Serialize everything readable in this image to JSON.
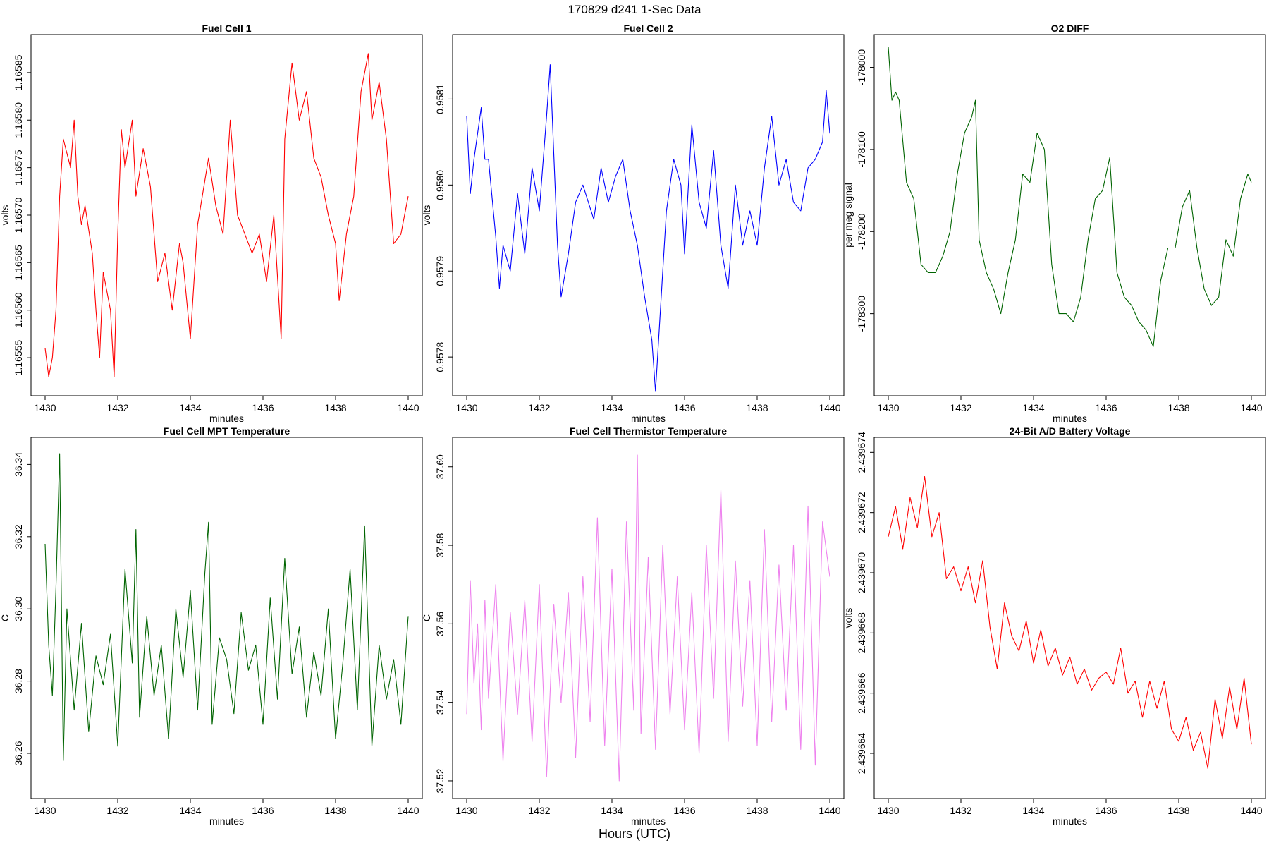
{
  "page": {
    "title": "170829   d241   1-Sec Data",
    "footer": "Hours (UTC)"
  },
  "chart_data": [
    {
      "type": "line",
      "title": "Fuel Cell 1",
      "xlabel": "minutes",
      "ylabel": "volts",
      "color": "#ff0000",
      "xlim": [
        1430,
        1440
      ],
      "ylim": [
        1.16551,
        1.16589
      ],
      "x_ticks": [
        1430,
        1432,
        1434,
        1436,
        1438,
        1440
      ],
      "y_ticks": [
        1.16555,
        1.1656,
        1.16565,
        1.1657,
        1.16575,
        1.1658,
        1.16585
      ],
      "y_tick_labels": [
        "1.16555",
        "1.16560",
        "1.16565",
        "1.16570",
        "1.16575",
        "1.16580",
        "1.16585"
      ],
      "series": [
        {
          "x": [
            1430.0,
            1430.1,
            1430.2,
            1430.3,
            1430.4,
            1430.5,
            1430.7,
            1430.8,
            1430.9,
            1431.0,
            1431.1,
            1431.3,
            1431.4,
            1431.5,
            1431.6,
            1431.8,
            1431.9,
            1432.0,
            1432.1,
            1432.2,
            1432.4,
            1432.5,
            1432.7,
            1432.9,
            1433.1,
            1433.3,
            1433.5,
            1433.7,
            1433.8,
            1434.0,
            1434.2,
            1434.5,
            1434.7,
            1434.9,
            1435.1,
            1435.3,
            1435.5,
            1435.7,
            1435.9,
            1436.1,
            1436.3,
            1436.5,
            1436.6,
            1436.8,
            1437.0,
            1437.2,
            1437.4,
            1437.6,
            1437.8,
            1438.0,
            1438.1,
            1438.3,
            1438.5,
            1438.7,
            1438.9,
            1439.0,
            1439.2,
            1439.4,
            1439.6,
            1439.8,
            1440.0
          ],
          "y": [
            1.16556,
            1.16553,
            1.16555,
            1.1656,
            1.16572,
            1.16578,
            1.16575,
            1.1658,
            1.16572,
            1.16569,
            1.16571,
            1.16566,
            1.1656,
            1.16555,
            1.16564,
            1.1656,
            1.16553,
            1.16568,
            1.16579,
            1.16575,
            1.1658,
            1.16572,
            1.16577,
            1.16573,
            1.16563,
            1.16566,
            1.1656,
            1.16567,
            1.16565,
            1.16557,
            1.16569,
            1.16576,
            1.16571,
            1.16568,
            1.1658,
            1.1657,
            1.16568,
            1.16566,
            1.16568,
            1.16563,
            1.1657,
            1.16557,
            1.16578,
            1.16586,
            1.1658,
            1.16583,
            1.16576,
            1.16574,
            1.1657,
            1.16567,
            1.16561,
            1.16568,
            1.16572,
            1.16583,
            1.16587,
            1.1658,
            1.16584,
            1.16578,
            1.16567,
            1.16568,
            1.16572
          ]
        }
      ]
    },
    {
      "type": "line",
      "title": "Fuel Cell 2",
      "xlabel": "minutes",
      "ylabel": "volts",
      "color": "#0000ff",
      "xlim": [
        1430,
        1440
      ],
      "ylim": [
        0.957755,
        0.958175
      ],
      "x_ticks": [
        1430,
        1432,
        1434,
        1436,
        1438,
        1440
      ],
      "y_ticks": [
        0.9578,
        0.9579,
        0.958,
        0.9581
      ],
      "y_tick_labels": [
        "0.9578",
        "0.9579",
        "0.9580",
        "0.9581"
      ],
      "series": [
        {
          "x": [
            1430.0,
            1430.1,
            1430.2,
            1430.4,
            1430.5,
            1430.6,
            1430.8,
            1430.9,
            1431.0,
            1431.2,
            1431.4,
            1431.6,
            1431.8,
            1432.0,
            1432.2,
            1432.3,
            1432.5,
            1432.6,
            1432.8,
            1433.0,
            1433.2,
            1433.5,
            1433.7,
            1433.9,
            1434.1,
            1434.3,
            1434.5,
            1434.7,
            1434.9,
            1435.1,
            1435.2,
            1435.4,
            1435.5,
            1435.7,
            1435.9,
            1436.0,
            1436.2,
            1436.4,
            1436.6,
            1436.8,
            1437.0,
            1437.2,
            1437.4,
            1437.6,
            1437.8,
            1438.0,
            1438.2,
            1438.4,
            1438.6,
            1438.8,
            1439.0,
            1439.2,
            1439.4,
            1439.6,
            1439.8,
            1439.9,
            1440.0
          ],
          "y": [
            0.95808,
            0.95799,
            0.95803,
            0.95809,
            0.95803,
            0.95803,
            0.95794,
            0.95788,
            0.95793,
            0.9579,
            0.95799,
            0.95792,
            0.95802,
            0.95797,
            0.95808,
            0.95814,
            0.95793,
            0.95787,
            0.95792,
            0.95798,
            0.958,
            0.95796,
            0.95802,
            0.95798,
            0.95801,
            0.95803,
            0.95797,
            0.95793,
            0.95787,
            0.95782,
            0.95776,
            0.9579,
            0.95797,
            0.95803,
            0.958,
            0.95792,
            0.95807,
            0.95798,
            0.95795,
            0.95804,
            0.95793,
            0.95788,
            0.958,
            0.95793,
            0.95797,
            0.95793,
            0.95802,
            0.95808,
            0.958,
            0.95803,
            0.95798,
            0.95797,
            0.95802,
            0.95803,
            0.95805,
            0.95811,
            0.95806
          ]
        }
      ]
    },
    {
      "type": "line",
      "title": "O2 DIFF",
      "xlabel": "minutes",
      "ylabel": "per meg signal",
      "color": "#006400",
      "xlim": [
        1430,
        1440
      ],
      "ylim": [
        -178400,
        -177960
      ],
      "x_ticks": [
        1430,
        1432,
        1434,
        1436,
        1438,
        1440
      ],
      "y_ticks": [
        -178300,
        -178200,
        -178100,
        -178000
      ],
      "y_tick_labels": [
        "-178300",
        "-178200",
        "-178100",
        "-178000"
      ],
      "series": [
        {
          "x": [
            1430.0,
            1430.1,
            1430.2,
            1430.3,
            1430.5,
            1430.7,
            1430.9,
            1431.1,
            1431.3,
            1431.5,
            1431.7,
            1431.9,
            1432.1,
            1432.3,
            1432.4,
            1432.5,
            1432.7,
            1432.9,
            1433.1,
            1433.3,
            1433.5,
            1433.7,
            1433.9,
            1434.1,
            1434.3,
            1434.5,
            1434.7,
            1434.9,
            1435.1,
            1435.3,
            1435.5,
            1435.7,
            1435.9,
            1436.1,
            1436.3,
            1436.5,
            1436.7,
            1436.9,
            1437.1,
            1437.3,
            1437.5,
            1437.7,
            1437.9,
            1438.1,
            1438.3,
            1438.5,
            1438.7,
            1438.9,
            1439.1,
            1439.3,
            1439.5,
            1439.7,
            1439.9,
            1440.0
          ],
          "y": [
            -177975,
            -178040,
            -178030,
            -178040,
            -178140,
            -178160,
            -178240,
            -178250,
            -178250,
            -178230,
            -178200,
            -178130,
            -178080,
            -178060,
            -178040,
            -178210,
            -178250,
            -178270,
            -178300,
            -178250,
            -178210,
            -178130,
            -178140,
            -178080,
            -178100,
            -178240,
            -178300,
            -178300,
            -178310,
            -178280,
            -178210,
            -178160,
            -178150,
            -178110,
            -178250,
            -178280,
            -178290,
            -178310,
            -178320,
            -178340,
            -178260,
            -178220,
            -178220,
            -178170,
            -178150,
            -178220,
            -178270,
            -178290,
            -178280,
            -178210,
            -178230,
            -178160,
            -178130,
            -178140
          ]
        }
      ]
    },
    {
      "type": "line",
      "title": "Fuel Cell MPT Temperature",
      "xlabel": "minutes",
      "ylabel": "C",
      "color": "#006400",
      "xlim": [
        1430,
        1440
      ],
      "ylim": [
        36.2475,
        36.3475
      ],
      "x_ticks": [
        1430,
        1432,
        1434,
        1436,
        1438,
        1440
      ],
      "y_ticks": [
        36.26,
        36.28,
        36.3,
        36.32,
        36.34
      ],
      "y_tick_labels": [
        "36.26",
        "36.28",
        "36.30",
        "36.32",
        "36.34"
      ],
      "series": [
        {
          "x": [
            1430.0,
            1430.1,
            1430.2,
            1430.3,
            1430.4,
            1430.5,
            1430.6,
            1430.8,
            1431.0,
            1431.2,
            1431.4,
            1431.6,
            1431.8,
            1432.0,
            1432.2,
            1432.4,
            1432.5,
            1432.6,
            1432.8,
            1433.0,
            1433.2,
            1433.4,
            1433.6,
            1433.8,
            1434.0,
            1434.2,
            1434.4,
            1434.5,
            1434.6,
            1434.8,
            1435.0,
            1435.2,
            1435.4,
            1435.6,
            1435.8,
            1436.0,
            1436.2,
            1436.4,
            1436.6,
            1436.8,
            1437.0,
            1437.2,
            1437.4,
            1437.6,
            1437.8,
            1438.0,
            1438.2,
            1438.4,
            1438.6,
            1438.8,
            1439.0,
            1439.2,
            1439.4,
            1439.6,
            1439.8,
            1440.0
          ],
          "y": [
            36.318,
            36.29,
            36.276,
            36.306,
            36.343,
            36.258,
            36.3,
            36.272,
            36.296,
            36.266,
            36.287,
            36.279,
            36.293,
            36.262,
            36.311,
            36.285,
            36.322,
            36.27,
            36.298,
            36.276,
            36.29,
            36.264,
            36.3,
            36.281,
            36.305,
            36.272,
            36.31,
            36.324,
            36.268,
            36.292,
            36.286,
            36.271,
            36.299,
            36.283,
            36.29,
            36.268,
            36.303,
            36.275,
            36.314,
            36.282,
            36.295,
            36.27,
            36.288,
            36.276,
            36.3,
            36.264,
            36.285,
            36.311,
            36.272,
            36.323,
            36.262,
            36.29,
            36.275,
            36.286,
            36.268,
            36.298
          ]
        }
      ]
    },
    {
      "type": "line",
      "title": "Fuel Cell Thermistor Temperature",
      "xlabel": "minutes",
      "ylabel": "C",
      "color": "#ee82ee",
      "xlim": [
        1430,
        1440
      ],
      "ylim": [
        37.5155,
        37.6075
      ],
      "x_ticks": [
        1430,
        1432,
        1434,
        1436,
        1438,
        1440
      ],
      "y_ticks": [
        37.52,
        37.54,
        37.56,
        37.58,
        37.6
      ],
      "y_tick_labels": [
        "37.52",
        "37.54",
        "37.56",
        "37.58",
        "37.60"
      ],
      "series": [
        {
          "x": [
            1430.0,
            1430.1,
            1430.2,
            1430.3,
            1430.4,
            1430.5,
            1430.6,
            1430.8,
            1431.0,
            1431.2,
            1431.4,
            1431.6,
            1431.8,
            1432.0,
            1432.2,
            1432.4,
            1432.6,
            1432.8,
            1433.0,
            1433.2,
            1433.4,
            1433.6,
            1433.8,
            1434.0,
            1434.2,
            1434.4,
            1434.6,
            1434.7,
            1434.8,
            1435.0,
            1435.2,
            1435.4,
            1435.6,
            1435.8,
            1436.0,
            1436.2,
            1436.4,
            1436.6,
            1436.8,
            1437.0,
            1437.2,
            1437.4,
            1437.6,
            1437.8,
            1438.0,
            1438.2,
            1438.4,
            1438.6,
            1438.8,
            1439.0,
            1439.2,
            1439.4,
            1439.6,
            1439.8,
            1440.0
          ],
          "y": [
            37.537,
            37.571,
            37.545,
            37.56,
            37.533,
            37.566,
            37.541,
            37.57,
            37.525,
            37.563,
            37.537,
            37.566,
            37.53,
            37.57,
            37.521,
            37.565,
            37.54,
            37.568,
            37.526,
            37.572,
            37.535,
            37.587,
            37.529,
            37.574,
            37.52,
            37.586,
            37.538,
            37.603,
            37.532,
            37.577,
            37.528,
            37.58,
            37.537,
            37.572,
            37.533,
            37.568,
            37.527,
            37.58,
            37.541,
            37.594,
            37.53,
            37.576,
            37.539,
            37.571,
            37.529,
            37.584,
            37.535,
            37.575,
            37.538,
            37.58,
            37.528,
            37.59,
            37.524,
            37.586,
            37.572
          ]
        }
      ]
    },
    {
      "type": "line",
      "title": "24-Bit A/D Battery Voltage",
      "xlabel": "minutes",
      "ylabel": "volts",
      "color": "#ff0000",
      "xlim": [
        1430,
        1440
      ],
      "ylim": [
        2.4396625,
        2.4396745
      ],
      "x_ticks": [
        1430,
        1432,
        1434,
        1436,
        1438,
        1440
      ],
      "y_ticks": [
        2.439664,
        2.439666,
        2.439668,
        2.43967,
        2.439672,
        2.439674
      ],
      "y_tick_labels": [
        "2.439664",
        "2.439666",
        "2.439668",
        "2.439670",
        "2.439672",
        "2.439674"
      ],
      "series": [
        {
          "x": [
            1430.0,
            1430.2,
            1430.4,
            1430.6,
            1430.8,
            1431.0,
            1431.2,
            1431.4,
            1431.6,
            1431.8,
            1432.0,
            1432.2,
            1432.4,
            1432.6,
            1432.8,
            1433.0,
            1433.2,
            1433.4,
            1433.6,
            1433.8,
            1434.0,
            1434.2,
            1434.4,
            1434.6,
            1434.8,
            1435.0,
            1435.2,
            1435.4,
            1435.6,
            1435.8,
            1436.0,
            1436.2,
            1436.4,
            1436.6,
            1436.8,
            1437.0,
            1437.2,
            1437.4,
            1437.6,
            1437.8,
            1438.0,
            1438.2,
            1438.4,
            1438.6,
            1438.8,
            1439.0,
            1439.2,
            1439.4,
            1439.6,
            1439.8,
            1440.0
          ],
          "y": [
            2.4396712,
            2.4396722,
            2.4396708,
            2.4396725,
            2.4396715,
            2.4396732,
            2.4396712,
            2.439672,
            2.4396698,
            2.4396702,
            2.4396694,
            2.4396702,
            2.439669,
            2.4396704,
            2.4396682,
            2.4396668,
            2.439669,
            2.4396679,
            2.4396674,
            2.4396684,
            2.439667,
            2.4396681,
            2.4396669,
            2.4396675,
            2.4396666,
            2.4396672,
            2.4396663,
            2.4396668,
            2.4396661,
            2.4396665,
            2.4396667,
            2.4396663,
            2.4396675,
            2.439666,
            2.4396664,
            2.4396652,
            2.4396664,
            2.4396655,
            2.4396664,
            2.4396648,
            2.4396644,
            2.4396652,
            2.4396641,
            2.4396647,
            2.4396635,
            2.4396658,
            2.4396645,
            2.4396662,
            2.4396648,
            2.4396665,
            2.4396643
          ]
        }
      ]
    }
  ]
}
